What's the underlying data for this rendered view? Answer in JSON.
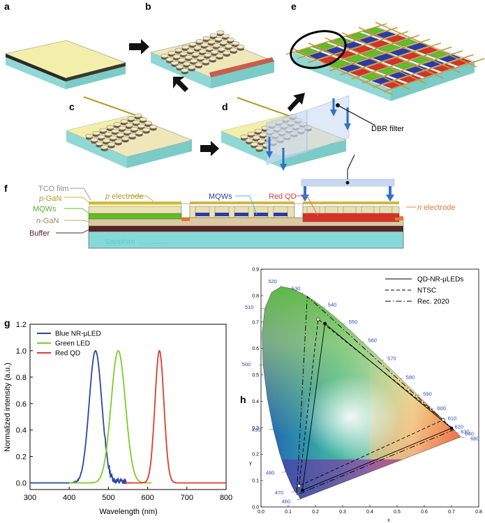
{
  "panels": {
    "a": "a",
    "b": "b",
    "c": "c",
    "d": "d",
    "e": "e",
    "f": "f",
    "g": "g",
    "h": "h"
  },
  "callouts": {
    "dbr_filter": "DBR filter"
  },
  "panel_f": {
    "labels": {
      "tco": "TCO film",
      "p_electrode_prefix": "p",
      "p_electrode_rest": " electrode",
      "p_gan_prefix": "p",
      "p_gan_rest": "-GaN",
      "mqws_left": "MQWs",
      "n_gan_prefix": "n",
      "n_gan_rest": "-GaN",
      "buffer": "Buffer",
      "sapphire": "Sapphire",
      "mqws_mid": "MQWs",
      "red_qd": "Red QD",
      "n_electrode_prefix": "n",
      "n_electrode_rest": " electrode"
    },
    "colors": {
      "tco": "#f2eca8",
      "p_gan": "#eae2b4",
      "mqw_green": "#5fbf26",
      "n_gan": "#dbc9a4",
      "buffer": "#5a2323",
      "sapphire": "#86d9d6",
      "blue": "#2a3aa6",
      "red": "#d63228",
      "electrode": "#cfb843",
      "dbr": "#c9d8ee",
      "arrow": "#2f72c8"
    }
  },
  "chart_data": [
    {
      "type": "line",
      "panel": "g",
      "xlabel": "Wavelength (nm)",
      "ylabel": "Normalized intensity (a.u.)",
      "xlim": [
        300,
        800
      ],
      "ylim": [
        -0.05,
        1.2
      ],
      "xticks": [
        "300",
        "400",
        "500",
        "600",
        "700",
        "800"
      ],
      "yticks": [
        "0.0",
        "0.2",
        "0.4",
        "0.6",
        "0.8",
        "1.0",
        "1.2"
      ],
      "legend_position": "top-left",
      "series": [
        {
          "name": "Blue NR-μLED",
          "color": "#2745a6",
          "peak": 467,
          "fwhm": 38,
          "range": [
            300,
            560
          ]
        },
        {
          "name": "Green LED",
          "color": "#7ccd28",
          "peak": 525,
          "fwhm": 43,
          "range": [
            400,
            610
          ]
        },
        {
          "name": "Red QD",
          "color": "#e23a2e",
          "peak": 630,
          "fwhm": 27,
          "range": [
            540,
            800
          ]
        }
      ]
    },
    {
      "type": "scatter",
      "panel": "h",
      "xlabel": "x",
      "ylabel": "y",
      "xlim": [
        0,
        0.8
      ],
      "ylim": [
        0,
        0.9
      ],
      "xticks": [
        "0.0",
        "0.1",
        "0.2",
        "0.3",
        "0.4",
        "0.5",
        "0.6",
        "0.7",
        "0.8"
      ],
      "yticks": [
        "0.0",
        "0.1",
        "0.2",
        "0.3",
        "0.4",
        "0.5",
        "0.6",
        "0.7",
        "0.8",
        "0.9"
      ],
      "legend_position": "top-right",
      "series": [
        {
          "name": "QD-NR-μLEDs",
          "style": "solid",
          "points": [
            [
              0.7,
              0.298
            ],
            [
              0.235,
              0.694
            ],
            [
              0.152,
              0.063
            ]
          ]
        },
        {
          "name": "NTSC",
          "style": "dashed",
          "points": [
            [
              0.67,
              0.33
            ],
            [
              0.21,
              0.71
            ],
            [
              0.14,
              0.08
            ]
          ]
        },
        {
          "name": "Rec. 2020",
          "style": "dashdot",
          "points": [
            [
              0.708,
              0.292
            ],
            [
              0.17,
              0.797
            ],
            [
              0.131,
              0.046
            ]
          ]
        }
      ],
      "wavelength_labels": [
        "460",
        "470",
        "480",
        "490",
        "500",
        "510",
        "520",
        "530",
        "540",
        "550",
        "560",
        "570",
        "580",
        "590",
        "600",
        "610",
        "620",
        "630",
        "640",
        "680"
      ]
    }
  ]
}
